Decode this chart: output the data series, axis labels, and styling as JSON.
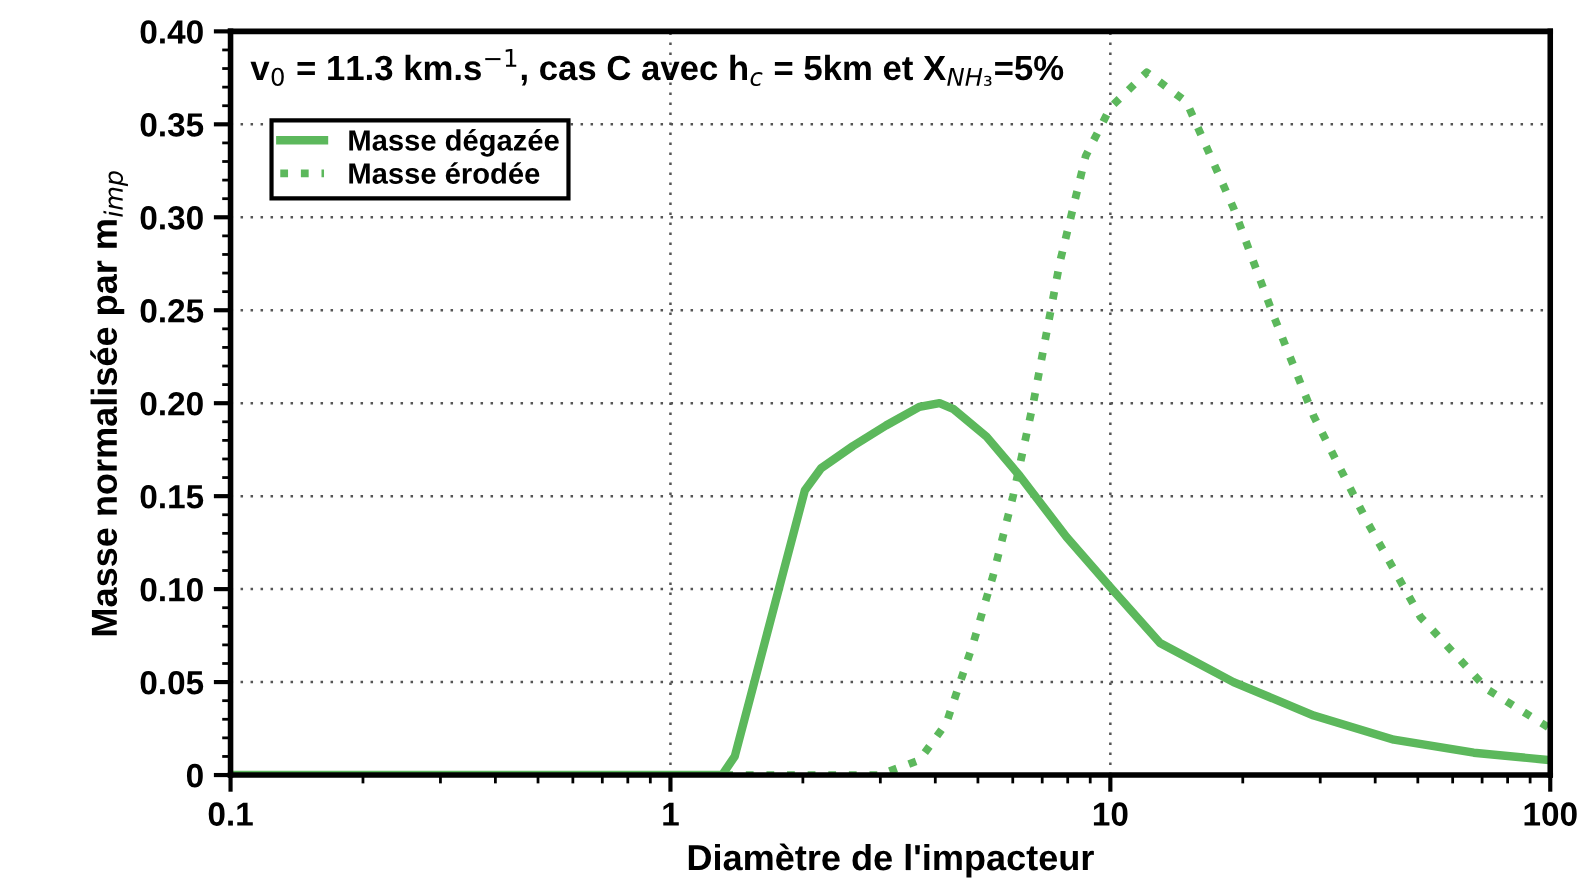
{
  "chart_data": {
    "type": "line",
    "xlabel": "Diamètre de l'impacteur",
    "ylabel": "Masse normalisée par m$_{imp}$",
    "annotations": [
      "v$_{0}$ = 11.3 km.s$^{−1}$, cas C avec h$_{c}$ = 5km et X$_{NH₃}$=5%"
    ],
    "log": "x",
    "xlim": [
      0.1,
      100
    ],
    "xticks": [
      0.1,
      1,
      10,
      100
    ],
    "ylim": [
      0,
      0.4
    ],
    "yticks": [
      {
        "value": 0,
        "label": "0"
      },
      {
        "value": 0.05,
        "label": "0.05"
      },
      {
        "value": 0.1,
        "label": "0.10"
      },
      {
        "value": 0.15,
        "label": "0.15"
      },
      {
        "value": 0.2,
        "label": "0.20"
      },
      {
        "value": 0.25,
        "label": "0.25"
      },
      {
        "value": 0.3,
        "label": "0.30"
      },
      {
        "value": 0.35,
        "label": "0.35"
      },
      {
        "value": 0.4,
        "label": "0.40"
      }
    ],
    "grid": true,
    "legend": "top left",
    "series": [
      {
        "name": "Masse dégazée",
        "color": "#5cb85c",
        "line_style": "solid",
        "x": [
          0.1,
          1.31,
          1.4,
          2.02,
          2.2,
          2.6,
          3.09,
          3.68,
          4.09,
          4.39,
          5.23,
          6.22,
          7.95,
          10,
          12.97,
          19.05,
          29,
          44.1,
          67,
          100
        ],
        "values": [
          0,
          0,
          0.01,
          0.153,
          0.165,
          0.177,
          0.188,
          0.198,
          0.2,
          0.197,
          0.182,
          0.161,
          0.128,
          0.101,
          0.071,
          0.05,
          0.032,
          0.019,
          0.012,
          0.008
        ]
      },
      {
        "name": "Masse érodée",
        "color": "#5cb85c",
        "line_style": "dotted",
        "x": [
          0.1,
          2.98,
          3.68,
          4.24,
          4.88,
          5.41,
          6.01,
          6.68,
          7.68,
          8.79,
          10,
          12.1,
          14.9,
          19.05,
          23.5,
          29,
          38.4,
          50.7,
          72,
          100
        ],
        "values": [
          0,
          0,
          0.008,
          0.028,
          0.071,
          0.107,
          0.15,
          0.2,
          0.276,
          0.333,
          0.359,
          0.378,
          0.362,
          0.305,
          0.247,
          0.193,
          0.136,
          0.085,
          0.046,
          0.025
        ]
      }
    ]
  }
}
